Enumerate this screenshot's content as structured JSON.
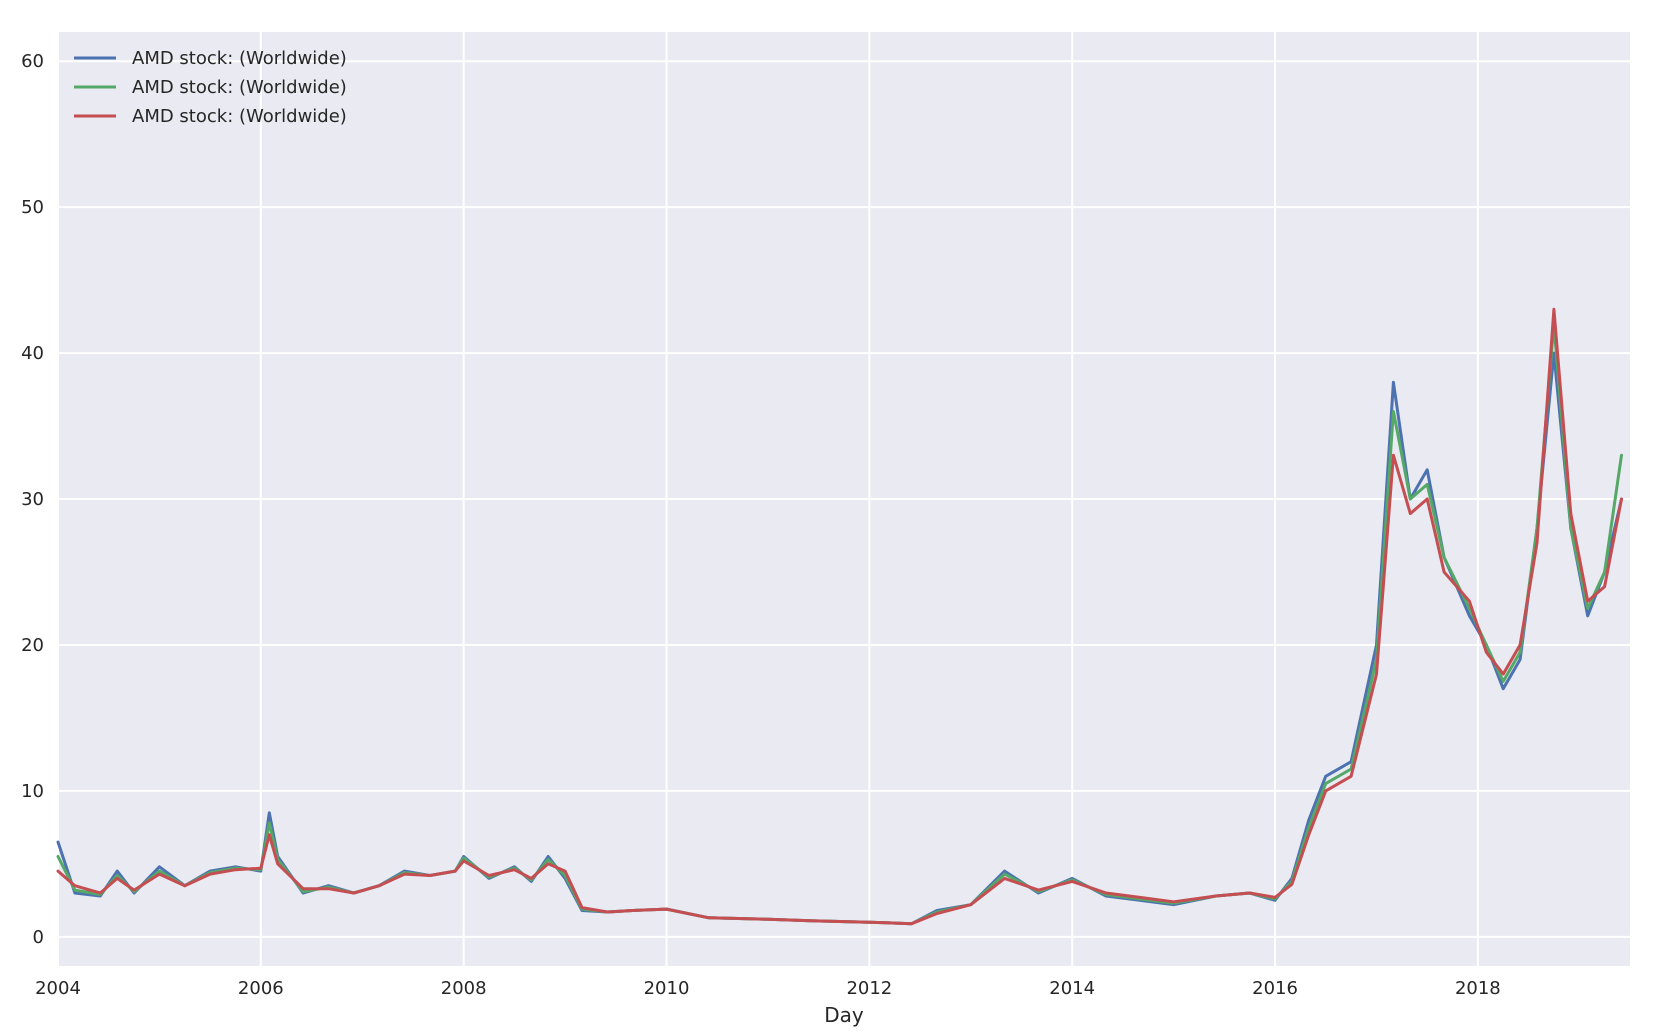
{
  "chart_data": {
    "type": "line",
    "title": "",
    "xlabel": "Day",
    "ylabel": "",
    "x_axis": {
      "kind": "date",
      "range": [
        "2004-01-01",
        "2019-07-01"
      ],
      "ticks": [
        "2004",
        "2006",
        "2008",
        "2010",
        "2012",
        "2014",
        "2016",
        "2018"
      ]
    },
    "y_axis": {
      "range": [
        -2,
        62
      ],
      "ticks": [
        0,
        10,
        20,
        30,
        40,
        50,
        60
      ]
    },
    "grid": true,
    "legend": "top-left",
    "colors": {
      "background": "#eaeaf2",
      "grid": "#ffffff"
    },
    "series": [
      {
        "name": "AMD stock: (Worldwide)",
        "color": "#4c72b0",
        "x": [
          "2004-01",
          "2004-03",
          "2004-06",
          "2004-08",
          "2004-10",
          "2005-01",
          "2005-04",
          "2005-07",
          "2005-10",
          "2006-01",
          "2006-02",
          "2006-03",
          "2006-06",
          "2006-09",
          "2006-12",
          "2007-03",
          "2007-06",
          "2007-09",
          "2007-12",
          "2008-01",
          "2008-04",
          "2008-07",
          "2008-09",
          "2008-11",
          "2009-01",
          "2009-03",
          "2009-06",
          "2009-09",
          "2010-01",
          "2010-06",
          "2011-01",
          "2011-06",
          "2012-01",
          "2012-06",
          "2012-09",
          "2013-01",
          "2013-05",
          "2013-09",
          "2014-01",
          "2014-05",
          "2014-09",
          "2015-01",
          "2015-06",
          "2015-10",
          "2016-01",
          "2016-03",
          "2016-05",
          "2016-07",
          "2016-10",
          "2017-01",
          "2017-03",
          "2017-05",
          "2017-07",
          "2017-09",
          "2017-12",
          "2018-02",
          "2018-04",
          "2018-06",
          "2018-08",
          "2018-10",
          "2018-12",
          "2019-02",
          "2019-04",
          "2019-06"
        ],
        "values": [
          6.5,
          3.0,
          2.8,
          4.5,
          3.0,
          4.8,
          3.5,
          4.5,
          4.8,
          4.5,
          8.5,
          5.5,
          3.0,
          3.5,
          3.0,
          3.5,
          4.5,
          4.2,
          4.5,
          5.5,
          4.0,
          4.8,
          3.8,
          5.5,
          4.0,
          1.8,
          1.7,
          1.8,
          1.9,
          1.3,
          1.2,
          1.1,
          1.0,
          0.9,
          1.8,
          2.2,
          4.5,
          3.0,
          4.0,
          2.8,
          2.5,
          2.2,
          2.8,
          3.0,
          2.5,
          4.0,
          8.0,
          11.0,
          12.0,
          20.0,
          38.0,
          30.0,
          32.0,
          26.0,
          22.0,
          20.0,
          17.0,
          19.0,
          28.0,
          40.0,
          28.0,
          22.0,
          25.0,
          30.0
        ]
      },
      {
        "name": "AMD stock: (Worldwide)",
        "color": "#55a868",
        "x": [
          "2004-01",
          "2004-03",
          "2004-06",
          "2004-08",
          "2004-10",
          "2005-01",
          "2005-04",
          "2005-07",
          "2005-10",
          "2006-01",
          "2006-02",
          "2006-03",
          "2006-06",
          "2006-09",
          "2006-12",
          "2007-03",
          "2007-06",
          "2007-09",
          "2007-12",
          "2008-01",
          "2008-04",
          "2008-07",
          "2008-09",
          "2008-11",
          "2009-01",
          "2009-03",
          "2009-06",
          "2009-09",
          "2010-01",
          "2010-06",
          "2011-01",
          "2011-06",
          "2012-01",
          "2012-06",
          "2012-09",
          "2013-01",
          "2013-05",
          "2013-09",
          "2014-01",
          "2014-05",
          "2014-09",
          "2015-01",
          "2015-06",
          "2015-10",
          "2016-01",
          "2016-03",
          "2016-05",
          "2016-07",
          "2016-10",
          "2017-01",
          "2017-03",
          "2017-05",
          "2017-07",
          "2017-09",
          "2017-12",
          "2018-02",
          "2018-04",
          "2018-06",
          "2018-08",
          "2018-10",
          "2018-12",
          "2019-02",
          "2019-04",
          "2019-06"
        ],
        "values": [
          5.5,
          3.2,
          2.9,
          4.2,
          3.1,
          4.5,
          3.5,
          4.4,
          4.7,
          4.6,
          7.8,
          5.3,
          3.1,
          3.4,
          3.0,
          3.5,
          4.4,
          4.2,
          4.5,
          5.4,
          4.1,
          4.7,
          3.9,
          5.3,
          4.2,
          1.9,
          1.7,
          1.8,
          1.9,
          1.3,
          1.2,
          1.1,
          1.0,
          0.9,
          1.7,
          2.2,
          4.3,
          3.1,
          3.9,
          2.9,
          2.6,
          2.3,
          2.8,
          3.0,
          2.6,
          3.8,
          7.5,
          10.5,
          11.5,
          19.0,
          36.0,
          30.0,
          31.0,
          26.0,
          22.5,
          20.0,
          17.5,
          19.5,
          28.0,
          42.0,
          28.0,
          22.5,
          25.0,
          33.0
        ]
      },
      {
        "name": "AMD stock: (Worldwide)",
        "color": "#c44e52",
        "x": [
          "2004-01",
          "2004-03",
          "2004-06",
          "2004-08",
          "2004-10",
          "2005-01",
          "2005-04",
          "2005-07",
          "2005-10",
          "2006-01",
          "2006-02",
          "2006-03",
          "2006-06",
          "2006-09",
          "2006-12",
          "2007-03",
          "2007-06",
          "2007-09",
          "2007-12",
          "2008-01",
          "2008-04",
          "2008-07",
          "2008-09",
          "2008-11",
          "2009-01",
          "2009-03",
          "2009-06",
          "2009-09",
          "2010-01",
          "2010-06",
          "2011-01",
          "2011-06",
          "2012-01",
          "2012-06",
          "2012-09",
          "2013-01",
          "2013-05",
          "2013-09",
          "2014-01",
          "2014-05",
          "2014-09",
          "2015-01",
          "2015-06",
          "2015-10",
          "2016-01",
          "2016-03",
          "2016-05",
          "2016-07",
          "2016-10",
          "2017-01",
          "2017-03",
          "2017-05",
          "2017-07",
          "2017-09",
          "2017-12",
          "2018-02",
          "2018-04",
          "2018-06",
          "2018-08",
          "2018-10",
          "2018-12",
          "2019-02",
          "2019-04",
          "2019-06"
        ],
        "values": [
          4.5,
          3.5,
          3.0,
          4.0,
          3.2,
          4.3,
          3.5,
          4.3,
          4.6,
          4.7,
          7.0,
          5.0,
          3.3,
          3.3,
          3.0,
          3.5,
          4.3,
          4.2,
          4.5,
          5.2,
          4.2,
          4.6,
          4.0,
          5.0,
          4.5,
          2.0,
          1.7,
          1.8,
          1.9,
          1.3,
          1.2,
          1.1,
          1.0,
          0.9,
          1.6,
          2.2,
          4.0,
          3.2,
          3.8,
          3.0,
          2.7,
          2.4,
          2.8,
          3.0,
          2.7,
          3.6,
          7.0,
          10.0,
          11.0,
          18.0,
          33.0,
          29.0,
          30.0,
          25.0,
          23.0,
          19.5,
          18.0,
          20.0,
          27.0,
          43.0,
          29.0,
          23.0,
          24.0,
          30.0
        ]
      }
    ]
  }
}
